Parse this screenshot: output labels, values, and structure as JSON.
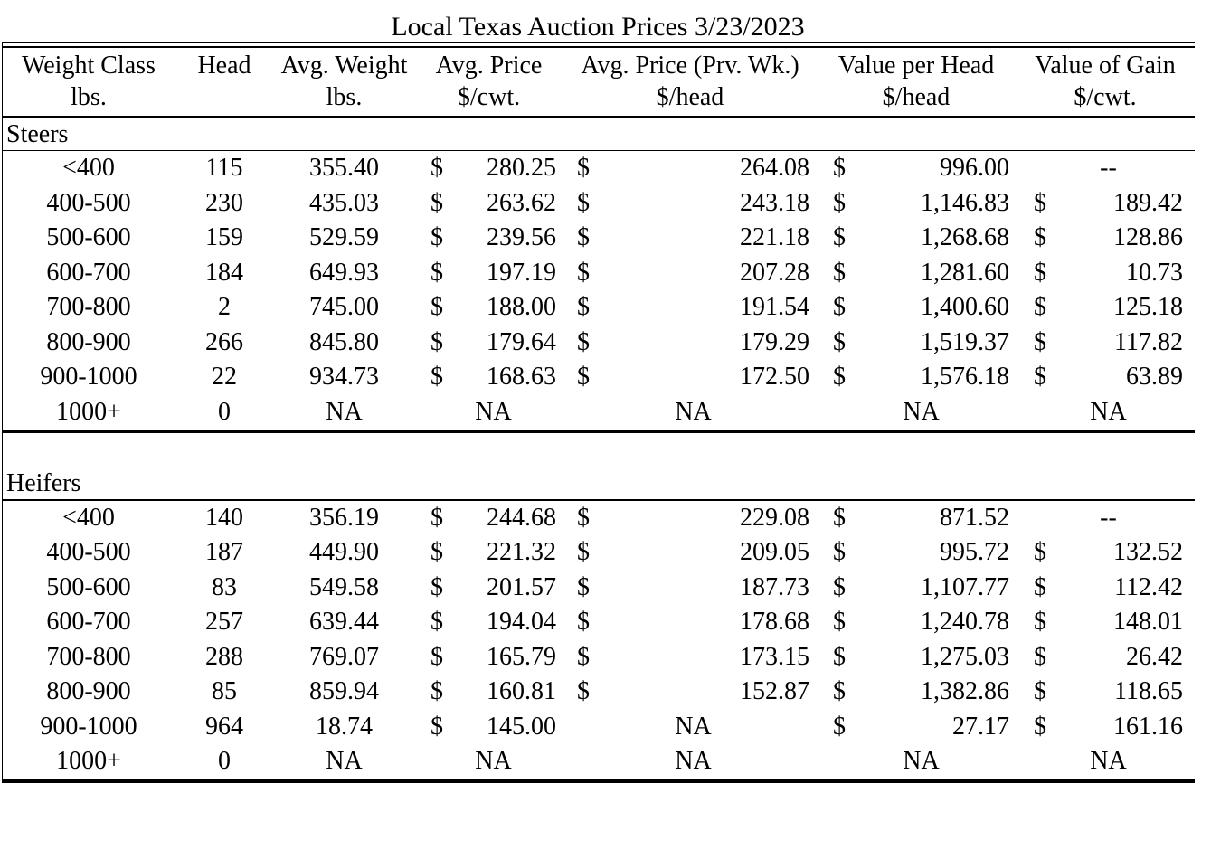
{
  "title": "Local Texas Auction Prices 3/23/2023",
  "colors": {
    "text": "#000000",
    "background": "#ffffff",
    "rule": "#000000"
  },
  "header": {
    "cols": [
      {
        "l1": "Weight Class",
        "l2": "lbs."
      },
      {
        "l1": "Head",
        "l2": ""
      },
      {
        "l1": "Avg. Weight",
        "l2": "lbs."
      },
      {
        "l1": "Avg. Price",
        "l2": "$/cwt."
      },
      {
        "l1": "Avg. Price (Prv. Wk.)",
        "l2": "$/head"
      },
      {
        "l1": "Value per Head",
        "l2": "$/head"
      },
      {
        "l1": "Value of Gain",
        "l2": "$/cwt."
      }
    ]
  },
  "sections": [
    {
      "label": "Steers",
      "rows": [
        {
          "wc": "<400",
          "head": "115",
          "avgw": "355.40",
          "d1": "$",
          "v1": "280.25",
          "d2": "$",
          "v2": "264.08",
          "d3": "$",
          "v3": "996.00",
          "d4": "",
          "v4": "--"
        },
        {
          "wc": "400-500",
          "head": "230",
          "avgw": "435.03",
          "d1": "$",
          "v1": "263.62",
          "d2": "$",
          "v2": "243.18",
          "d3": "$",
          "v3": "1,146.83",
          "d4": "$",
          "v4": "189.42"
        },
        {
          "wc": "500-600",
          "head": "159",
          "avgw": "529.59",
          "d1": "$",
          "v1": "239.56",
          "d2": "$",
          "v2": "221.18",
          "d3": "$",
          "v3": "1,268.68",
          "d4": "$",
          "v4": "128.86"
        },
        {
          "wc": "600-700",
          "head": "184",
          "avgw": "649.93",
          "d1": "$",
          "v1": "197.19",
          "d2": "$",
          "v2": "207.28",
          "d3": "$",
          "v3": "1,281.60",
          "d4": "$",
          "v4": "10.73"
        },
        {
          "wc": "700-800",
          "head": "2",
          "avgw": "745.00",
          "d1": "$",
          "v1": "188.00",
          "d2": "$",
          "v2": "191.54",
          "d3": "$",
          "v3": "1,400.60",
          "d4": "$",
          "v4": "125.18"
        },
        {
          "wc": "800-900",
          "head": "266",
          "avgw": "845.80",
          "d1": "$",
          "v1": "179.64",
          "d2": "$",
          "v2": "179.29",
          "d3": "$",
          "v3": "1,519.37",
          "d4": "$",
          "v4": "117.82"
        },
        {
          "wc": "900-1000",
          "head": "22",
          "avgw": "934.73",
          "d1": "$",
          "v1": "168.63",
          "d2": "$",
          "v2": "172.50",
          "d3": "$",
          "v3": "1,576.18",
          "d4": "$",
          "v4": "63.89"
        },
        {
          "wc": "1000+",
          "head": "0",
          "avgw": "NA",
          "d1": "",
          "v1": "NA",
          "d2": "",
          "v2": "NA",
          "d3": "",
          "v3": "NA",
          "d4": "",
          "v4": "NA"
        }
      ]
    },
    {
      "label": "Heifers",
      "rows": [
        {
          "wc": "<400",
          "head": "140",
          "avgw": "356.19",
          "d1": "$",
          "v1": "244.68",
          "d2": "$",
          "v2": "229.08",
          "d3": "$",
          "v3": "871.52",
          "d4": "",
          "v4": "--"
        },
        {
          "wc": "400-500",
          "head": "187",
          "avgw": "449.90",
          "d1": "$",
          "v1": "221.32",
          "d2": "$",
          "v2": "209.05",
          "d3": "$",
          "v3": "995.72",
          "d4": "$",
          "v4": "132.52"
        },
        {
          "wc": "500-600",
          "head": "83",
          "avgw": "549.58",
          "d1": "$",
          "v1": "201.57",
          "d2": "$",
          "v2": "187.73",
          "d3": "$",
          "v3": "1,107.77",
          "d4": "$",
          "v4": "112.42"
        },
        {
          "wc": "600-700",
          "head": "257",
          "avgw": "639.44",
          "d1": "$",
          "v1": "194.04",
          "d2": "$",
          "v2": "178.68",
          "d3": "$",
          "v3": "1,240.78",
          "d4": "$",
          "v4": "148.01"
        },
        {
          "wc": "700-800",
          "head": "288",
          "avgw": "769.07",
          "d1": "$",
          "v1": "165.79",
          "d2": "$",
          "v2": "173.15",
          "d3": "$",
          "v3": "1,275.03",
          "d4": "$",
          "v4": "26.42"
        },
        {
          "wc": "800-900",
          "head": "85",
          "avgw": "859.94",
          "d1": "$",
          "v1": "160.81",
          "d2": "$",
          "v2": "152.87",
          "d3": "$",
          "v3": "1,382.86",
          "d4": "$",
          "v4": "118.65"
        },
        {
          "wc": "900-1000",
          "head": "964",
          "avgw": "18.74",
          "d1": "$",
          "v1": "145.00",
          "d2": "",
          "v2": "NA",
          "d3": "$",
          "v3": "27.17",
          "d4": "$",
          "v4": "161.16"
        },
        {
          "wc": "1000+",
          "head": "0",
          "avgw": "NA",
          "d1": "",
          "v1": "NA",
          "d2": "",
          "v2": "NA",
          "d3": "",
          "v3": "NA",
          "d4": "",
          "v4": "NA"
        }
      ]
    }
  ]
}
